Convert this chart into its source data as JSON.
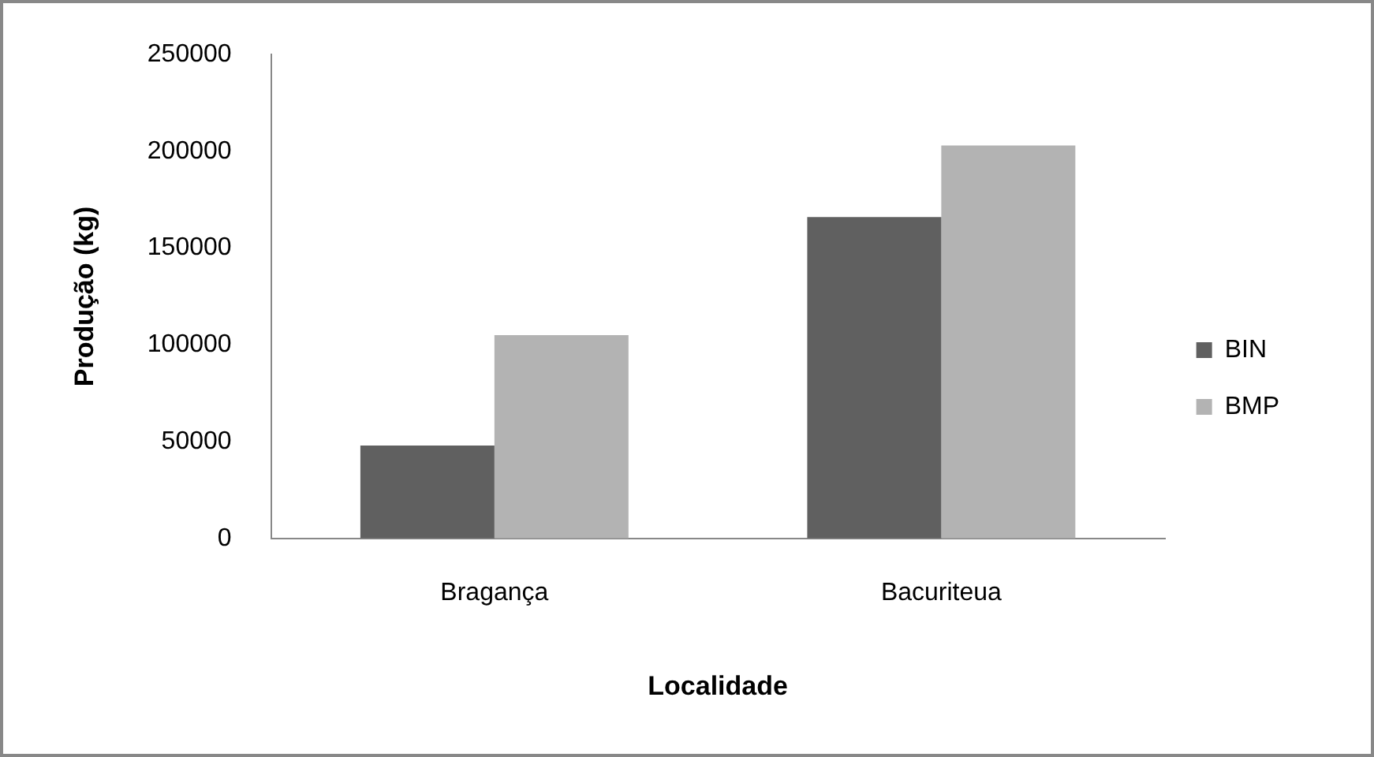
{
  "chart_data": {
    "type": "bar",
    "xlabel": "Localidade",
    "ylabel": "Produção (kg)",
    "categories": [
      "Bragança",
      "Bacuriteua"
    ],
    "series": [
      {
        "name": "BIN",
        "color": "#606060",
        "values": [
          48000,
          166000
        ]
      },
      {
        "name": "BMP",
        "color": "#b3b3b3",
        "values": [
          105000,
          203000
        ]
      }
    ],
    "ylim": [
      0,
      250000
    ],
    "yticks": [
      0,
      50000,
      100000,
      150000,
      200000,
      250000
    ],
    "grid": false,
    "legend": "right"
  }
}
